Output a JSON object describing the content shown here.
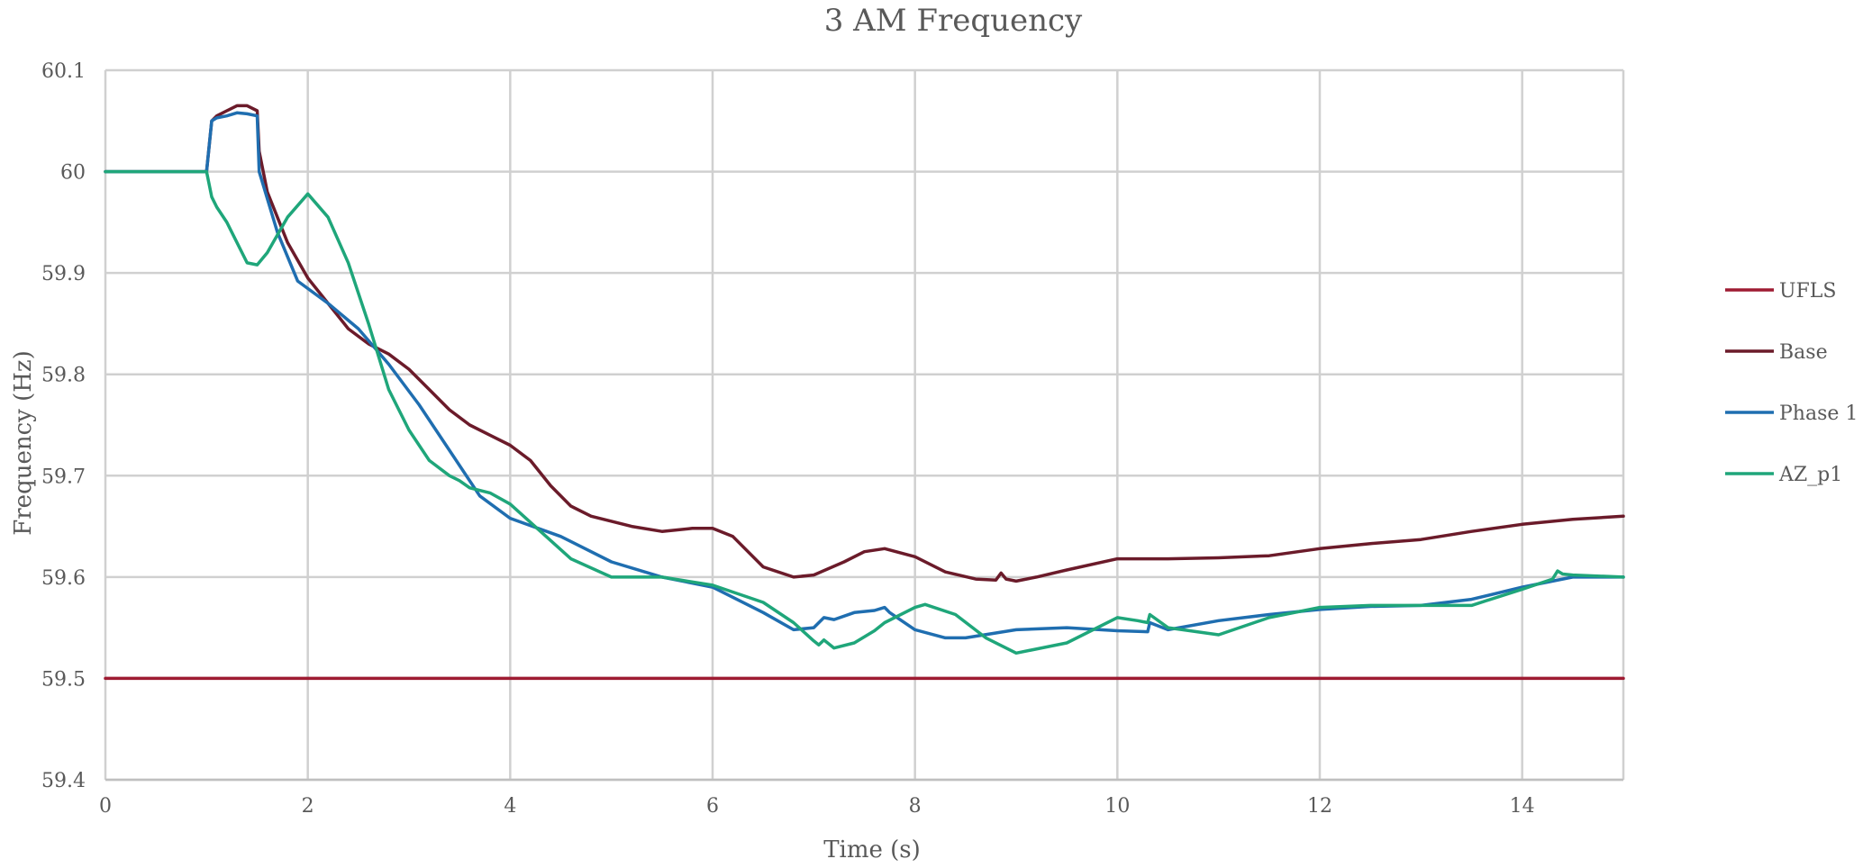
{
  "chart_data": {
    "type": "line",
    "title": "3 AM Frequency",
    "xlabel": "Time (s)",
    "ylabel": "Frequency (Hz)",
    "xlim": [
      0,
      15
    ],
    "ylim": [
      59.4,
      60.1
    ],
    "xticks": [
      0,
      2,
      4,
      6,
      8,
      10,
      12,
      14
    ],
    "xtick_labels": [
      "0",
      "2",
      "4",
      "6",
      "8",
      "10",
      "12",
      "14"
    ],
    "yticks": [
      59.4,
      59.5,
      59.6,
      59.7,
      59.8,
      59.9,
      60.0,
      60.1
    ],
    "ytick_labels": [
      "59.4",
      "59.5",
      "59.6",
      "59.7",
      "59.8",
      "59.9",
      "60",
      "60.1"
    ],
    "grid": true,
    "legend_position": "right",
    "series": [
      {
        "name": "UFLS",
        "color": "#9e1b32",
        "x": [
          0,
          15
        ],
        "y": [
          59.5,
          59.5
        ]
      },
      {
        "name": "Base",
        "color": "#6b1b2a",
        "x": [
          0,
          0.5,
          1.0,
          1.05,
          1.1,
          1.2,
          1.3,
          1.4,
          1.5,
          1.52,
          1.6,
          1.8,
          2.0,
          2.2,
          2.4,
          2.6,
          2.8,
          3.0,
          3.2,
          3.4,
          3.6,
          3.8,
          4.0,
          4.2,
          4.4,
          4.6,
          4.8,
          5.0,
          5.2,
          5.5,
          5.8,
          6.0,
          6.2,
          6.5,
          6.8,
          7.0,
          7.3,
          7.5,
          7.7,
          8.0,
          8.3,
          8.6,
          8.8,
          8.85,
          8.9,
          9.0,
          9.2,
          9.5,
          10.0,
          10.5,
          11.0,
          11.5,
          12.0,
          12.5,
          13.0,
          13.5,
          14.0,
          14.5,
          15.0
        ],
        "y": [
          60.0,
          60.0,
          60.0,
          60.05,
          60.055,
          60.06,
          60.065,
          60.065,
          60.06,
          60.02,
          59.98,
          59.93,
          59.895,
          59.87,
          59.845,
          59.83,
          59.82,
          59.805,
          59.785,
          59.765,
          59.75,
          59.74,
          59.73,
          59.715,
          59.69,
          59.67,
          59.66,
          59.655,
          59.65,
          59.645,
          59.648,
          59.648,
          59.64,
          59.61,
          59.6,
          59.602,
          59.615,
          59.625,
          59.628,
          59.62,
          59.605,
          59.598,
          59.597,
          59.604,
          59.598,
          59.596,
          59.6,
          59.607,
          59.618,
          59.618,
          59.619,
          59.621,
          59.628,
          59.633,
          59.637,
          59.645,
          59.652,
          59.657,
          59.66
        ]
      },
      {
        "name": "Phase 1",
        "color": "#1f6eb0",
        "x": [
          0,
          0.5,
          1.0,
          1.05,
          1.1,
          1.2,
          1.3,
          1.4,
          1.5,
          1.52,
          1.7,
          1.9,
          2.2,
          2.5,
          2.8,
          3.1,
          3.4,
          3.7,
          4.0,
          4.5,
          5.0,
          5.5,
          6.0,
          6.5,
          6.8,
          7.0,
          7.1,
          7.2,
          7.4,
          7.6,
          7.7,
          7.75,
          8.0,
          8.3,
          8.5,
          9.0,
          9.5,
          10.0,
          10.3,
          10.32,
          10.5,
          11.0,
          11.5,
          12.0,
          12.5,
          13.0,
          13.5,
          14.0,
          14.4,
          14.5,
          15.0
        ],
        "y": [
          60.0,
          60.0,
          60.0,
          60.05,
          60.053,
          60.055,
          60.058,
          60.057,
          60.055,
          60.0,
          59.94,
          59.892,
          59.87,
          59.845,
          59.81,
          59.77,
          59.725,
          59.68,
          59.658,
          59.64,
          59.615,
          59.6,
          59.59,
          59.565,
          59.548,
          59.55,
          59.56,
          59.558,
          59.565,
          59.567,
          59.57,
          59.565,
          59.548,
          59.54,
          59.54,
          59.548,
          59.55,
          59.547,
          59.546,
          59.555,
          59.548,
          59.557,
          59.563,
          59.568,
          59.571,
          59.572,
          59.578,
          59.59,
          59.598,
          59.6,
          59.6
        ]
      },
      {
        "name": "AZ_p1",
        "color": "#1fa67a",
        "x": [
          0,
          0.5,
          1.0,
          1.05,
          1.1,
          1.2,
          1.4,
          1.5,
          1.6,
          1.8,
          2.0,
          2.2,
          2.4,
          2.6,
          2.8,
          3.0,
          3.2,
          3.4,
          3.5,
          3.6,
          3.8,
          4.0,
          4.3,
          4.6,
          5.0,
          5.5,
          6.0,
          6.5,
          6.8,
          7.0,
          7.05,
          7.1,
          7.2,
          7.4,
          7.6,
          7.7,
          8.0,
          8.1,
          8.4,
          8.7,
          9.0,
          9.5,
          10.0,
          10.2,
          10.3,
          10.32,
          10.5,
          11.0,
          11.5,
          12.0,
          12.5,
          13.0,
          13.5,
          14.0,
          14.3,
          14.35,
          14.4,
          14.5,
          15.0
        ],
        "y": [
          60.0,
          60.0,
          60.0,
          59.975,
          59.965,
          59.95,
          59.91,
          59.908,
          59.92,
          59.955,
          59.978,
          59.955,
          59.91,
          59.85,
          59.785,
          59.745,
          59.715,
          59.7,
          59.695,
          59.688,
          59.683,
          59.672,
          59.645,
          59.618,
          59.6,
          59.6,
          59.592,
          59.575,
          59.555,
          59.537,
          59.533,
          59.538,
          59.53,
          59.535,
          59.547,
          59.555,
          59.57,
          59.573,
          59.563,
          59.54,
          59.525,
          59.535,
          59.56,
          59.557,
          59.555,
          59.563,
          59.55,
          59.543,
          59.56,
          59.57,
          59.572,
          59.572,
          59.572,
          59.588,
          59.598,
          59.606,
          59.603,
          59.602,
          59.6
        ]
      }
    ]
  }
}
